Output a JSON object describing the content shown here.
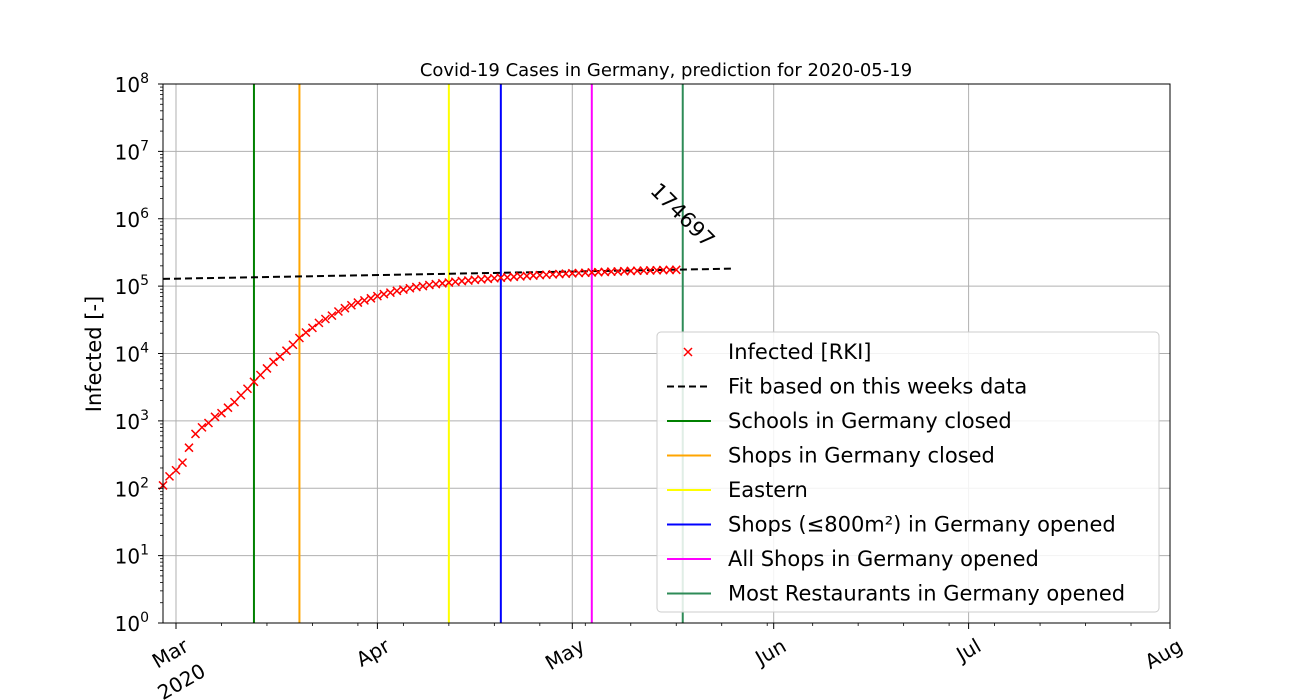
{
  "chart_data": {
    "type": "line",
    "title": "Covid-19 Cases in Germany, prediction for 2020-05-19",
    "xlabel": "",
    "ylabel": "Infected [-]",
    "yscale": "log",
    "ylim": [
      1,
      100000000
    ],
    "xlim": [
      "2020-02-28",
      "2020-08-01"
    ],
    "grid": true,
    "legend_position": "lower-right",
    "x_ticks": [
      {
        "date": "2020-03-01",
        "label": "Mar",
        "label2": "2020"
      },
      {
        "date": "2020-04-01",
        "label": "Apr"
      },
      {
        "date": "2020-05-01",
        "label": "May"
      },
      {
        "date": "2020-06-01",
        "label": "Jun"
      },
      {
        "date": "2020-07-01",
        "label": "Jul"
      },
      {
        "date": "2020-08-01",
        "label": "Aug"
      }
    ],
    "y_ticks": [
      {
        "value": 1,
        "base": "10",
        "exp": "0"
      },
      {
        "value": 10,
        "base": "10",
        "exp": "1"
      },
      {
        "value": 100,
        "base": "10",
        "exp": "2"
      },
      {
        "value": 1000,
        "base": "10",
        "exp": "3"
      },
      {
        "value": 10000,
        "base": "10",
        "exp": "4"
      },
      {
        "value": 100000,
        "base": "10",
        "exp": "5"
      },
      {
        "value": 1000000,
        "base": "10",
        "exp": "6"
      },
      {
        "value": 10000000,
        "base": "10",
        "exp": "7"
      },
      {
        "value": 100000000,
        "base": "10",
        "exp": "8"
      }
    ],
    "series": [
      {
        "name": "Infected [RKI]",
        "style": "markers-x",
        "color": "#ff0000",
        "start_date": "2020-02-28",
        "values": [
          110,
          150,
          185,
          240,
          400,
          640,
          800,
          930,
          1150,
          1300,
          1570,
          1900,
          2400,
          3000,
          3800,
          4800,
          6000,
          7500,
          9000,
          11000,
          13500,
          17000,
          20500,
          24000,
          28500,
          32500,
          36500,
          42000,
          47000,
          52000,
          57000,
          61500,
          66000,
          71000,
          76000,
          80000,
          85000,
          89000,
          93000,
          97000,
          100000,
          104000,
          107000,
          110000,
          113000,
          116000,
          119000,
          121000,
          124000,
          126000,
          128500,
          131000,
          133000,
          135000,
          137500,
          139500,
          141500,
          143500,
          145500,
          147500,
          149500,
          151000,
          153000,
          155000,
          156500,
          158000,
          159500,
          161000,
          162500,
          164000,
          165000,
          166500,
          168000,
          169000,
          170000,
          171000,
          172000,
          173000,
          173800,
          174697
        ]
      },
      {
        "name": "Fit based on this weeks data",
        "style": "dashed",
        "color": "#000000",
        "x": [
          "2020-02-28",
          "2020-05-26"
        ],
        "values": [
          128000,
          182000
        ]
      }
    ],
    "events": [
      {
        "name": "Schools in Germany closed",
        "date": "2020-03-13",
        "color": "#008000"
      },
      {
        "name": "Shops in Germany closed",
        "date": "2020-03-20",
        "color": "#ffa500"
      },
      {
        "name": "Eastern",
        "date": "2020-04-12",
        "color": "#ffff00"
      },
      {
        "name": "Shops (≤800m²) in Germany opened",
        "date": "2020-04-20",
        "color": "#0000ff"
      },
      {
        "name": "All Shops in Germany opened",
        "date": "2020-05-04",
        "color": "#ff00ff"
      },
      {
        "name": "Most Restaurants in Germany opened",
        "date": "2020-05-18",
        "color": "#2e8b57"
      }
    ],
    "annotations": [
      {
        "text": "174697",
        "x": "2020-05-19",
        "y": 174697,
        "rotation_deg": 45
      }
    ]
  }
}
